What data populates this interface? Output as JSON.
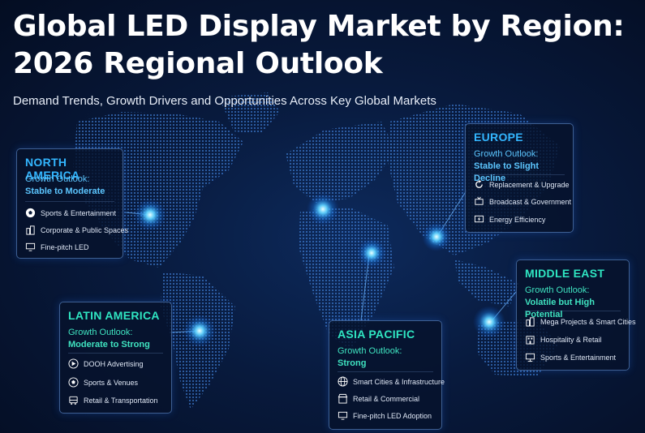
{
  "header": {
    "title_line1": "Global LED Display Market by Region:",
    "title_line2": "2026 Regional Outlook",
    "subtitle": "Demand Trends, Growth Drivers and Opportunities Across Key Global Markets"
  },
  "regions": {
    "north_america": {
      "name": "NORTH AMERICA",
      "outlook_label": "Growth Outlook:",
      "outlook_value": "Stable to Moderate",
      "items": [
        "Sports & Entertainment",
        "Corporate & Public Spaces",
        "Fine-pitch LED"
      ],
      "icons": [
        "soccer-ball-icon",
        "building-icon",
        "monitor-icon"
      ]
    },
    "europe": {
      "name": "EUROPE",
      "outlook_label": "Growth Outlook:",
      "outlook_value": "Stable to Slight Decline",
      "items": [
        "Replacement & Upgrade",
        "Broadcast & Government",
        "Energy Efficiency"
      ],
      "icons": [
        "refresh-icon",
        "broadcast-icon",
        "energy-icon"
      ]
    },
    "middle_east": {
      "name": "MIDDLE EAST",
      "outlook_label": "Growth Outlook:",
      "outlook_value": "Volatile but High Potential",
      "items": [
        "Mega Projects & Smart Cities",
        "Hospitality & Retail",
        "Sports & Entertainment"
      ],
      "icons": [
        "building-icon",
        "hotel-icon",
        "screen-icon"
      ]
    },
    "latin_america": {
      "name": "LATIN AMERICA",
      "outlook_label": "Growth Outlook:",
      "outlook_value": "Moderate to Strong",
      "items": [
        "DOOH Advertising",
        "Sports & Venues",
        "Retail & Transportation"
      ],
      "icons": [
        "ad-icon",
        "soccer-ball-icon",
        "bus-icon"
      ]
    },
    "asia_pacific": {
      "name": "ASIA PACIFIC",
      "outlook_label": "Growth Outlook:",
      "outlook_value": "Strong",
      "items": [
        "Smart Cities & Infrastructure",
        "Retail & Commercial",
        "Fine-pitch LED Adoption"
      ],
      "icons": [
        "globe-icon",
        "store-icon",
        "monitor-icon"
      ]
    }
  },
  "colors": {
    "background": "#081a3d",
    "cyan_accent": "#33b6ff",
    "green_accent": "#2fe6c2",
    "hotspot": "#3fb8ff"
  }
}
